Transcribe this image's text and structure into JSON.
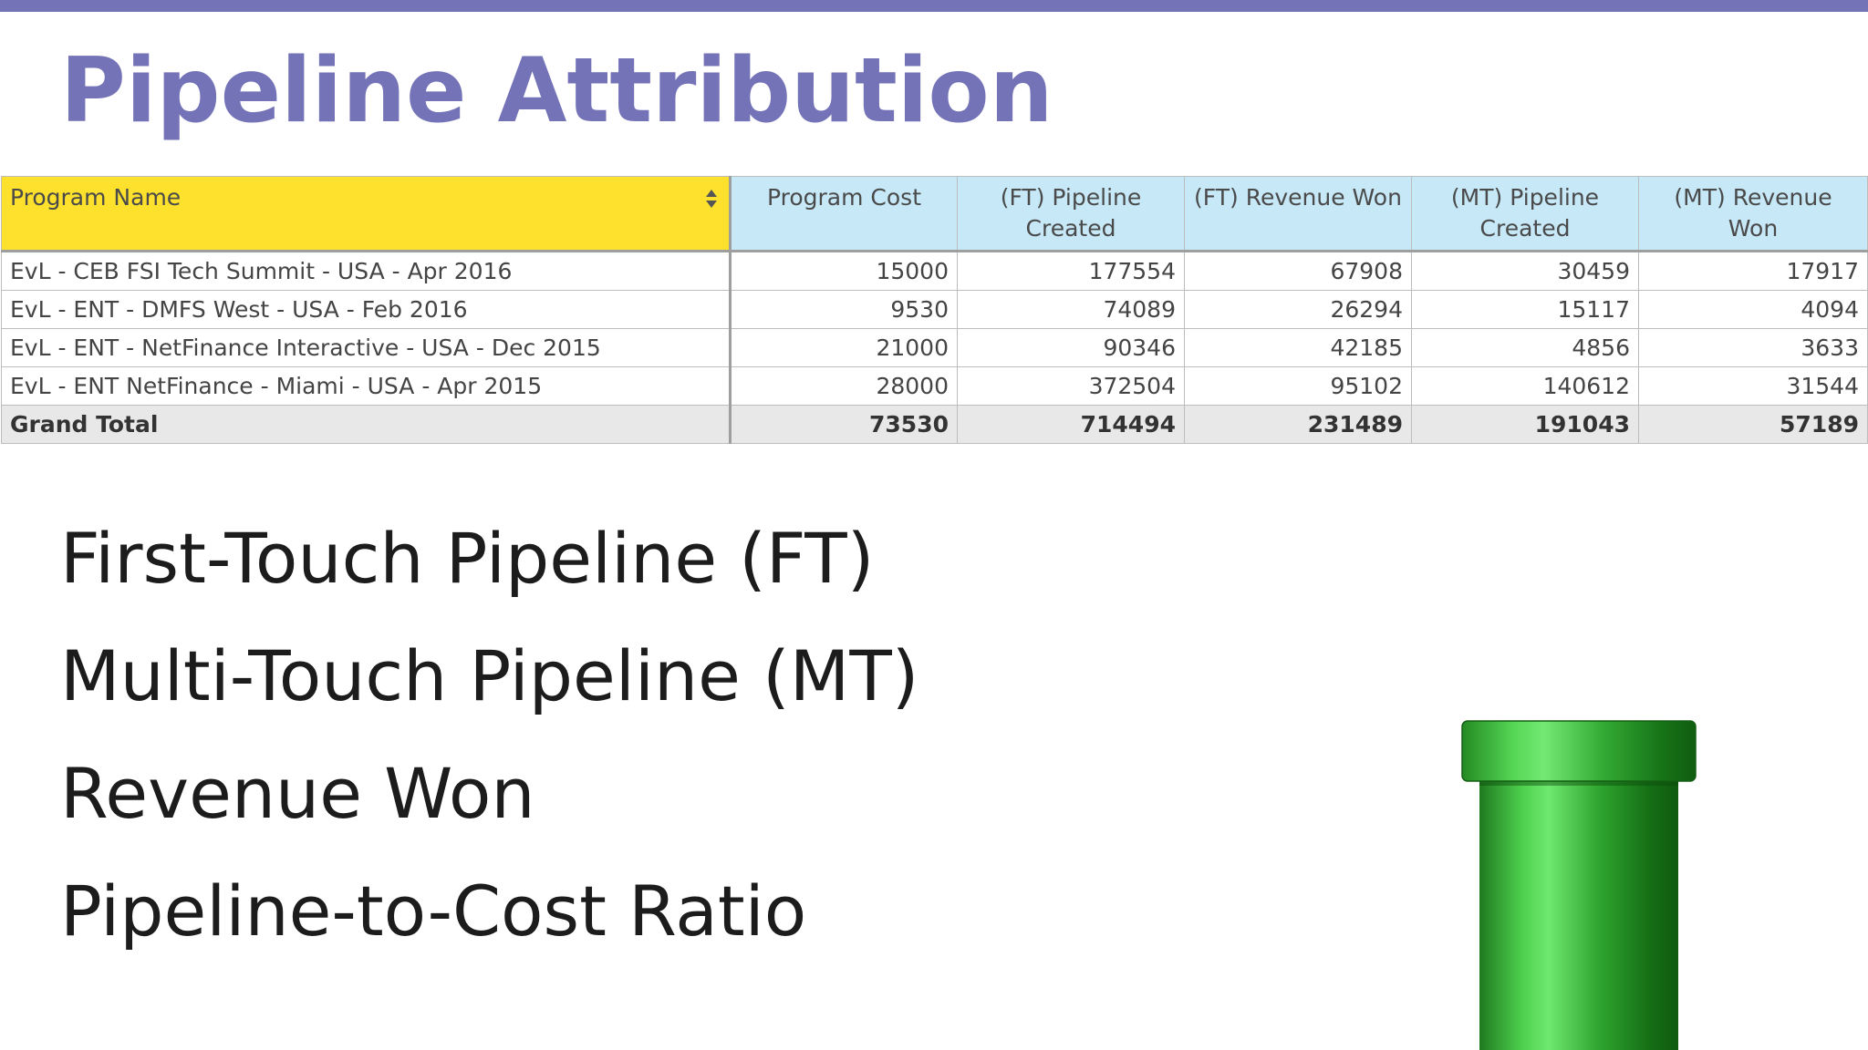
{
  "slide": {
    "title": "Pipeline Attribution",
    "colors": {
      "accent": "#7473b8",
      "header_highlight": "#fde12d",
      "header_blue": "#c6e8f7",
      "total_row": "#e8e8e8",
      "pipe_green": "#2fa52f"
    }
  },
  "table": {
    "columns": [
      "Program Name",
      "Program Cost",
      "(FT) Pipeline Created",
      "(FT) Revenue Won",
      "(MT) Pipeline Created",
      "(MT) Revenue Won"
    ],
    "rows": [
      {
        "name": "EvL - CEB FSI Tech Summit - USA - Apr 2016",
        "values": [
          "15000",
          "177554",
          "67908",
          "30459",
          "17917"
        ]
      },
      {
        "name": "EvL - ENT - DMFS West - USA - Feb 2016",
        "values": [
          "9530",
          "74089",
          "26294",
          "15117",
          "4094"
        ]
      },
      {
        "name": "EvL - ENT - NetFinance Interactive - USA - Dec 2015",
        "values": [
          "21000",
          "90346",
          "42185",
          "4856",
          "3633"
        ]
      },
      {
        "name": "EvL - ENT NetFinance - Miami - USA - Apr 2015",
        "values": [
          "28000",
          "372504",
          "95102",
          "140612",
          "31544"
        ]
      }
    ],
    "total": {
      "name": "Grand Total",
      "values": [
        "73530",
        "714494",
        "231489",
        "191043",
        "57189"
      ]
    }
  },
  "bullets": [
    "First-Touch Pipeline (FT)",
    "Multi-Touch Pipeline (MT)",
    "Revenue Won",
    "Pipeline-to-Cost Ratio"
  ],
  "icons": {
    "sort": "sort-icon",
    "pipe": "green-pipe-icon"
  }
}
